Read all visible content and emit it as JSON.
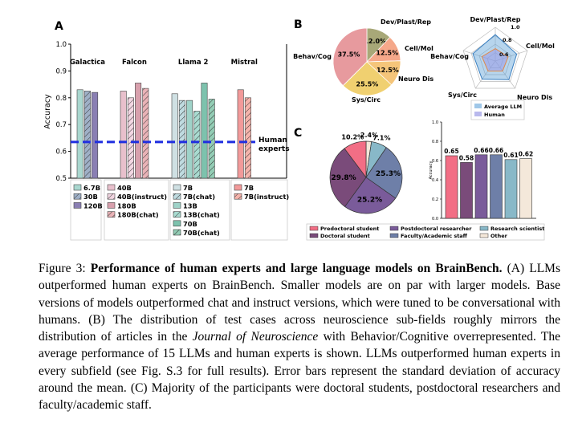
{
  "colors": {
    "hatch_stroke": "#333333",
    "human_line": "#1f2ee0",
    "galactica": [
      "#a9d7cf",
      "#9fb0c7",
      "#8a7fb3"
    ],
    "falcon": [
      "#e8c0cc",
      "#f2d6e2",
      "#d8a0ad",
      "#e9b3b7"
    ],
    "llama": [
      "#cfe0e3",
      "#bfdbe0",
      "#9fd3c9",
      "#a8dbd0",
      "#7dc2ad",
      "#93cdb5"
    ],
    "mistral": [
      "#f29a9a",
      "#f5b3ab"
    ],
    "pie_b": [
      "#a8a878",
      "#f5a88a",
      "#f5c57a",
      "#f0d070",
      "#e79a9e",
      "#f4c8c6"
    ],
    "radar_avg": "#5fa2d8",
    "radar_human": "#9b9be6",
    "pie_c": [
      "#f26e85",
      "#7a4b7a",
      "#7a5b9a",
      "#6e7fa8",
      "#88b8c8",
      "#f4e8da"
    ]
  },
  "panel_a": {
    "label": "A",
    "ylabel": "Accuracy",
    "human_label_line1": "Human",
    "human_label_line2": "experts",
    "families": [
      {
        "name": "Galactica",
        "models": [
          "6.7B",
          "30B",
          "120B"
        ]
      },
      {
        "name": "Falcon",
        "models": [
          "40B",
          "40B(instruct)",
          "180B",
          "180B(chat)"
        ]
      },
      {
        "name": "Llama 2",
        "models": [
          "7B",
          "7B(chat)",
          "13B",
          "13B(chat)",
          "70B",
          "70B(chat)"
        ]
      },
      {
        "name": "Mistral",
        "models": [
          "7B",
          "7B(instruct)"
        ]
      }
    ]
  },
  "panel_b": {
    "label": "B",
    "radar_top_value": "1.0",
    "radar_mid_value": "0.8",
    "radar_low_value": "0.6",
    "legend_avg": "Average LLM",
    "legend_human": "Human"
  },
  "panel_c": {
    "label": "C",
    "ylabel": "Accuracy",
    "legend": [
      "Predoctoral student",
      "Doctoral student",
      "Postdoctoral researcher",
      "Faculty/Academic staff",
      "Research scientist",
      "Other"
    ]
  },
  "chart_data": [
    {
      "type": "bar",
      "panel": "A",
      "ylabel": "Accuracy",
      "ylim": [
        0.5,
        1.0
      ],
      "yticks": [
        "0.5",
        "0.6",
        "0.7",
        "0.8",
        "0.9",
        "1.0"
      ],
      "human_baseline": 0.635,
      "series": [
        {
          "family": "Galactica",
          "models": [
            "6.7B",
            "30B",
            "120B"
          ],
          "values": [
            0.83,
            0.825,
            0.82
          ]
        },
        {
          "family": "Falcon",
          "models": [
            "40B",
            "40B(instruct)",
            "180B",
            "180B(chat)"
          ],
          "values": [
            0.825,
            0.8,
            0.855,
            0.835
          ]
        },
        {
          "family": "Llama 2",
          "models": [
            "7B",
            "7B(chat)",
            "13B",
            "13B(chat)",
            "70B",
            "70B(chat)"
          ],
          "values": [
            0.815,
            0.79,
            0.79,
            0.75,
            0.855,
            0.795
          ]
        },
        {
          "family": "Mistral",
          "models": [
            "7B",
            "7B(instruct)"
          ],
          "values": [
            0.83,
            0.8
          ]
        }
      ]
    },
    {
      "type": "pie",
      "panel": "B",
      "labels": [
        "Dev/Plast/Rep",
        "Cell/Mol",
        "Neuro Dis",
        "Sys/Circ",
        "Behav/Cog"
      ],
      "slices": [
        {
          "label": "Dev/Plast/Rep",
          "value": 12.0,
          "text": "12.0%"
        },
        {
          "label": "Cell/Mol",
          "value": 12.5,
          "text": "12.5%"
        },
        {
          "label": "Neuro Dis",
          "value": 12.5,
          "text": "12.5%"
        },
        {
          "label": "Sys/Circ",
          "value": 25.5,
          "text": "25.5%"
        },
        {
          "label": "Behav/Cog",
          "value": 37.5,
          "text": "37.5%"
        }
      ]
    },
    {
      "type": "radar",
      "panel": "B",
      "axes": [
        "Dev/Plast/Rep",
        "Cell/Mol",
        "Neuro Dis",
        "Sys/Circ",
        "Behav/Cog"
      ],
      "rlim": [
        0.4,
        1.0
      ],
      "series": [
        {
          "name": "Average LLM",
          "values": [
            0.87,
            0.8,
            0.81,
            0.8,
            0.82
          ]
        },
        {
          "name": "Human",
          "values": [
            0.62,
            0.64,
            0.62,
            0.62,
            0.65
          ]
        }
      ]
    },
    {
      "type": "pie",
      "panel": "C",
      "slices": [
        {
          "label": "Other",
          "value": 2.4,
          "text": "2.4%"
        },
        {
          "label": "Research scientist",
          "value": 7.1,
          "text": "7.1%"
        },
        {
          "label": "Faculty/Academic staff",
          "value": 25.3,
          "text": "25.3%"
        },
        {
          "label": "Postdoctoral researcher",
          "value": 25.2,
          "text": "25.2%"
        },
        {
          "label": "Doctoral student",
          "value": 29.8,
          "text": "29.8%"
        },
        {
          "label": "Predoctoral student",
          "value": 10.2,
          "text": "10.2%"
        }
      ]
    },
    {
      "type": "bar",
      "panel": "C",
      "ylabel": "Accuracy",
      "ylim": [
        0.0,
        1.0
      ],
      "yticks": [
        "0.0",
        "0.2",
        "0.4",
        "0.6",
        "0.8",
        "1.0"
      ],
      "categories": [
        "Predoctoral student",
        "Doctoral student",
        "Postdoctoral researcher",
        "Faculty/Academic staff",
        "Research scientist",
        "Other"
      ],
      "values": [
        0.65,
        0.58,
        0.66,
        0.66,
        0.61,
        0.62
      ],
      "value_labels": [
        "0.65",
        "0.58",
        "0.66",
        "0.66",
        "0.61",
        "0.62"
      ]
    }
  ],
  "caption": {
    "prefix": "Figure 3: ",
    "title": "Performance of human experts and large language models on BrainBench.",
    "part1": " (A) LLMs outperformed human experts on BrainBench. Smaller models are on par with larger models. Base versions of models outperformed chat and instruct versions, which were tuned to be conversational with humans. (B) The distribution of test cases across neuroscience sub-fields roughly mirrors the distribution of articles in the ",
    "journal": "Journal of Neuroscience",
    "part2": " with Behavior/Cognitive overrepresented. The average performance of 15 LLMs and human experts is shown. LLMs outperformed human experts in every subfield (see Fig. S.3 for full results). Error bars represent the standard deviation of accuracy around the mean. (C) Majority of the participants were doctoral students, postdoctoral researchers and faculty/academic staff."
  }
}
